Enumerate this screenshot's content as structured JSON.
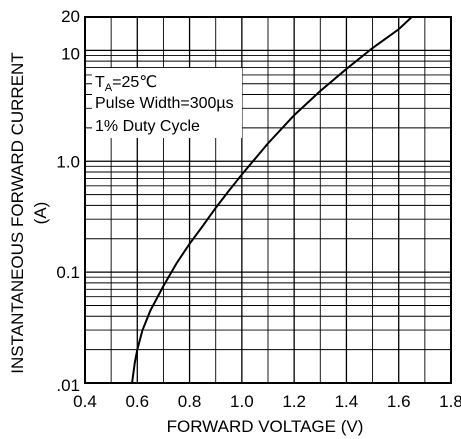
{
  "chart_data": {
    "type": "line",
    "xlabel": "FORWARD VOLTAGE (V)",
    "ylabel_line1": "INSTANTANEOUS FORWARD CURRENT",
    "ylabel_line2": "(A)",
    "xlim": [
      0.4,
      1.8
    ],
    "ylim": [
      0.01,
      20
    ],
    "y_scale": "log",
    "grid": true,
    "x_ticks": [
      {
        "value": 0.4,
        "label": "0.4"
      },
      {
        "value": 0.6,
        "label": "0.6"
      },
      {
        "value": 0.8,
        "label": "0.8"
      },
      {
        "value": 1.0,
        "label": "1.0"
      },
      {
        "value": 1.2,
        "label": "1.2"
      },
      {
        "value": 1.4,
        "label": "1.4"
      },
      {
        "value": 1.6,
        "label": "1.6"
      },
      {
        "value": 1.8,
        "label": "1.8"
      }
    ],
    "y_ticks": [
      {
        "value": 0.01,
        "label": ".01"
      },
      {
        "value": 0.1,
        "label": "0.1"
      },
      {
        "value": 1.0,
        "label": "1.0"
      },
      {
        "value": 10,
        "label": "10"
      },
      {
        "value": 20,
        "label": "20"
      }
    ],
    "annotations": [
      {
        "main": "T",
        "sub": "A",
        "rest": "=25℃"
      },
      {
        "main": "Pulse Width=300µs"
      },
      {
        "main": "1% Duty Cycle"
      }
    ],
    "series": [
      {
        "x": [
          0.58,
          0.59,
          0.6,
          0.62,
          0.65,
          0.7,
          0.75,
          0.8,
          0.85,
          0.9,
          0.95,
          1.0,
          1.1,
          1.2,
          1.3,
          1.4,
          1.5,
          1.6,
          1.65
        ],
        "y": [
          0.01,
          0.015,
          0.02,
          0.03,
          0.045,
          0.075,
          0.12,
          0.18,
          0.26,
          0.38,
          0.54,
          0.76,
          1.45,
          2.6,
          4.3,
          6.8,
          10.5,
          15.5,
          20
        ]
      }
    ]
  }
}
